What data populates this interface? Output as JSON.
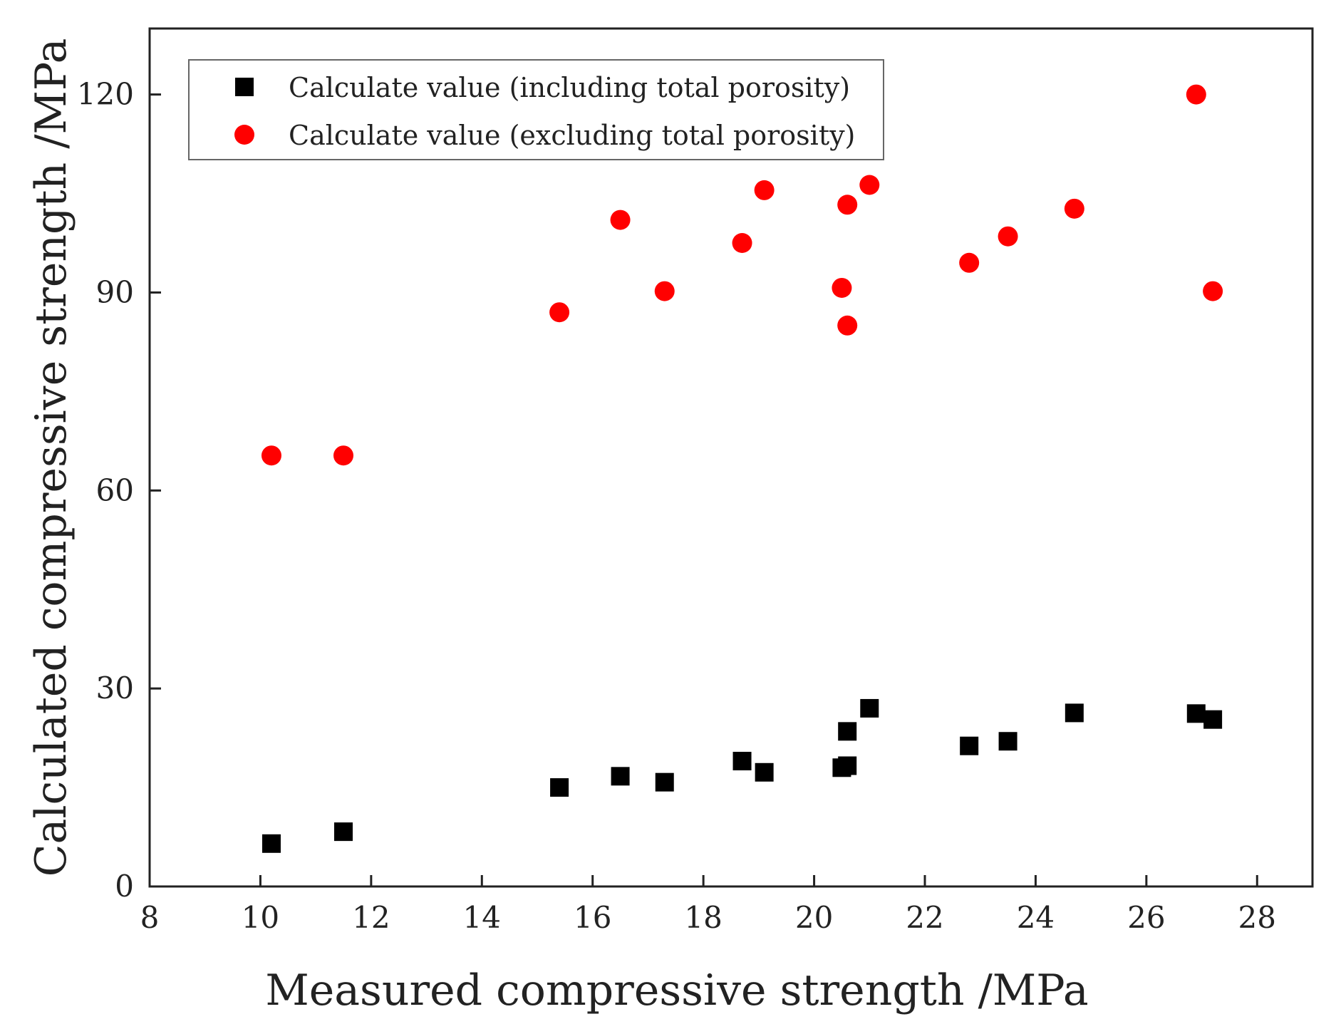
{
  "chart_data": {
    "type": "scatter",
    "title": "",
    "xlabel": "Measured compressive strength /MPa",
    "ylabel": "Calculated compressive strength /MPa",
    "xlim": [
      8,
      29
    ],
    "ylim": [
      0,
      130
    ],
    "xticks": [
      "8",
      "10",
      "12",
      "14",
      "16",
      "18",
      "20",
      "22",
      "24",
      "26",
      "28"
    ],
    "yticks": [
      "0",
      "30",
      "60",
      "90",
      "120"
    ],
    "grid": false,
    "legend_position": "top-left",
    "series": [
      {
        "name": "Calculate value (including total porosity)",
        "marker": "square",
        "color": "#000000",
        "points": [
          [
            10.2,
            6.5
          ],
          [
            11.5,
            8.3
          ],
          [
            15.4,
            15.0
          ],
          [
            16.5,
            16.7
          ],
          [
            17.3,
            15.8
          ],
          [
            18.7,
            19.0
          ],
          [
            19.1,
            17.3
          ],
          [
            20.5,
            18.0
          ],
          [
            20.6,
            18.3
          ],
          [
            20.6,
            23.5
          ],
          [
            21.0,
            27.0
          ],
          [
            22.8,
            21.3
          ],
          [
            23.5,
            22.0
          ],
          [
            24.7,
            26.3
          ],
          [
            26.9,
            26.2
          ],
          [
            27.2,
            25.3
          ]
        ]
      },
      {
        "name": "Calculate value (excluding total porosity)",
        "marker": "circle",
        "color": "#ff0000",
        "points": [
          [
            10.2,
            65.3
          ],
          [
            11.5,
            65.3
          ],
          [
            15.4,
            87.0
          ],
          [
            16.5,
            101.0
          ],
          [
            17.3,
            90.2
          ],
          [
            18.7,
            97.5
          ],
          [
            19.1,
            105.5
          ],
          [
            20.5,
            90.7
          ],
          [
            20.6,
            85.0
          ],
          [
            20.6,
            103.3
          ],
          [
            21.0,
            106.3
          ],
          [
            22.8,
            94.5
          ],
          [
            23.5,
            98.5
          ],
          [
            24.7,
            102.7
          ],
          [
            26.9,
            120.0
          ],
          [
            27.2,
            90.2
          ]
        ]
      }
    ]
  }
}
